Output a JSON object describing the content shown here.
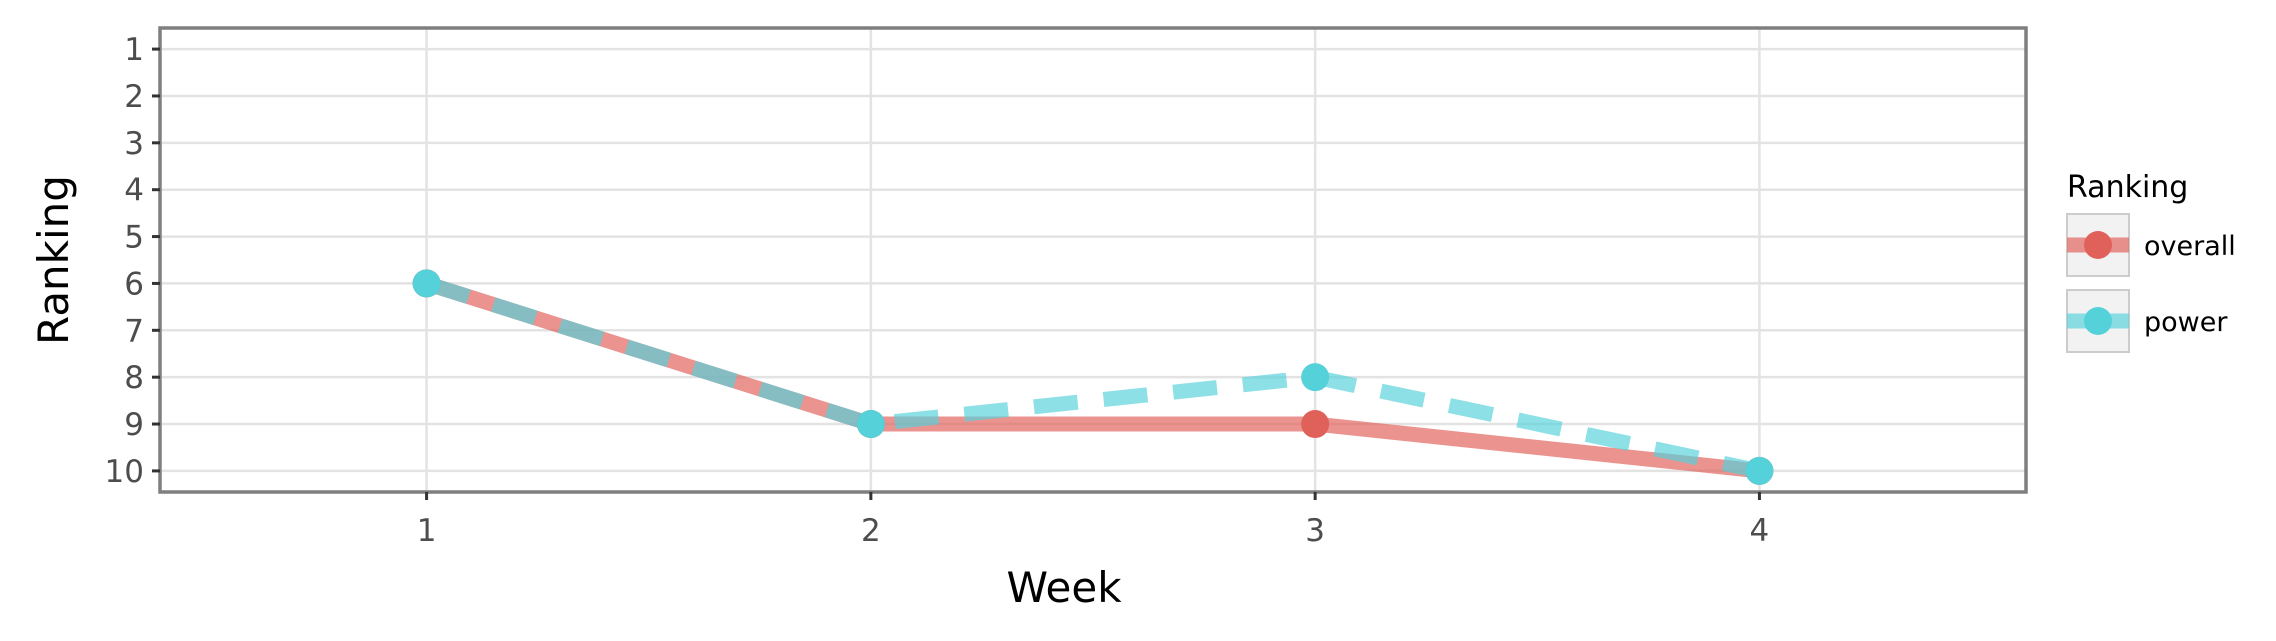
{
  "chart_data": {
    "type": "line",
    "xlabel": "Week",
    "ylabel": "Ranking",
    "x": [
      1,
      2,
      3,
      4
    ],
    "xlim": [
      0.4,
      4.6
    ],
    "ylim": [
      10.45,
      0.55
    ],
    "y_reversed": true,
    "x_ticks": [
      1,
      2,
      3,
      4
    ],
    "y_ticks": [
      1,
      2,
      3,
      4,
      5,
      6,
      7,
      8,
      9,
      10
    ],
    "grid": true,
    "legend": {
      "title": "Ranking",
      "placement": "right"
    },
    "series": [
      {
        "name": "overall",
        "values": [
          6,
          9,
          9,
          10
        ],
        "color": "#e0605a",
        "linestyle": "solid"
      },
      {
        "name": "power",
        "values": [
          6,
          9,
          8,
          10
        ],
        "color": "#55d1da",
        "linestyle": "dashed"
      }
    ]
  }
}
